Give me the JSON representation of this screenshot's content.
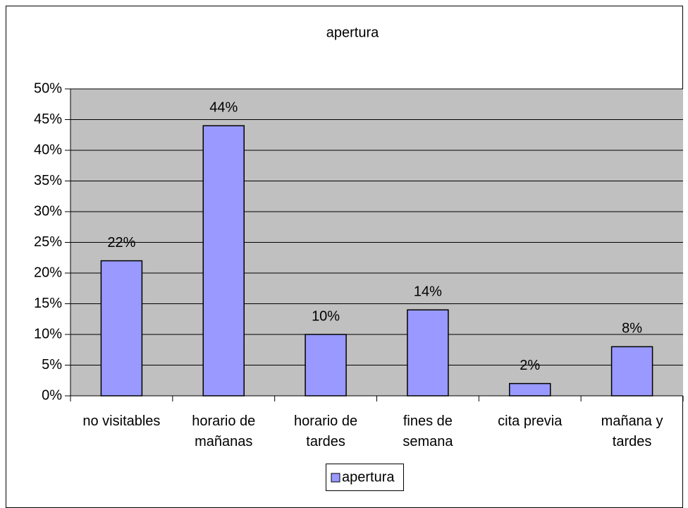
{
  "chart_data": {
    "type": "bar",
    "title": "apertura",
    "categories": [
      "no visitables",
      "horario de mañanas",
      "horario de tardes",
      "fines de semana",
      "cita previa",
      "mañana y tardes"
    ],
    "series": [
      {
        "name": "apertura",
        "color": "#9999ff",
        "values": [
          22,
          44,
          10,
          14,
          2,
          8
        ],
        "value_labels": [
          "22%",
          "44%",
          "10%",
          "14%",
          "2%",
          "8%"
        ]
      }
    ],
    "ylim": [
      0,
      50
    ],
    "yticks": [
      {
        "value": 0,
        "label": "0%"
      },
      {
        "value": 5,
        "label": "5%"
      },
      {
        "value": 10,
        "label": "10%"
      },
      {
        "value": 15,
        "label": "15%"
      },
      {
        "value": 20,
        "label": "20%"
      },
      {
        "value": 25,
        "label": "25%"
      },
      {
        "value": 30,
        "label": "30%"
      },
      {
        "value": 35,
        "label": "35%"
      },
      {
        "value": 40,
        "label": "40%"
      },
      {
        "value": 45,
        "label": "45%"
      },
      {
        "value": 50,
        "label": "50%"
      }
    ],
    "grid": true,
    "legend": "bottom"
  }
}
